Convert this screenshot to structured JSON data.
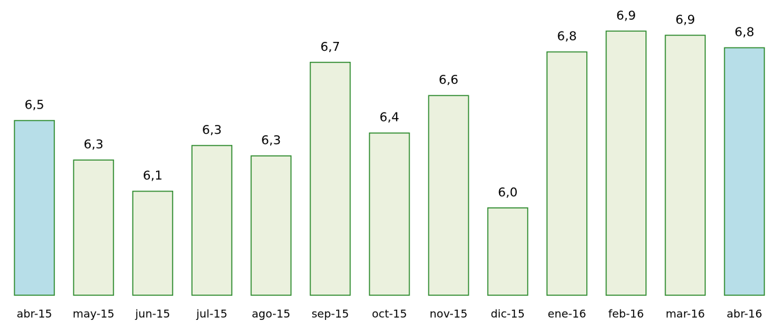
{
  "chart_data": {
    "type": "bar",
    "categories": [
      "abr-15",
      "may-15",
      "jun-15",
      "jul-15",
      "ago-15",
      "sep-15",
      "oct-15",
      "nov-15",
      "dic-15",
      "ene-16",
      "feb-16",
      "mar-16",
      "abr-16"
    ],
    "values": [
      6.46,
      6.27,
      6.12,
      6.34,
      6.29,
      6.74,
      6.4,
      6.58,
      6.04,
      6.79,
      6.89,
      6.87,
      6.81
    ],
    "value_labels": [
      "6,5",
      "6,3",
      "6,1",
      "6,3",
      "6,3",
      "6,7",
      "6,4",
      "6,6",
      "6,0",
      "6,8",
      "6,9",
      "6,9",
      "6,8"
    ],
    "colors": [
      "#b7dee8",
      "#ebf1de",
      "#ebf1de",
      "#ebf1de",
      "#ebf1de",
      "#ebf1de",
      "#ebf1de",
      "#ebf1de",
      "#ebf1de",
      "#ebf1de",
      "#ebf1de",
      "#ebf1de",
      "#b7dee8"
    ],
    "edge_color": "#2e8b2e",
    "ylim": [
      5.62,
      7.0
    ]
  }
}
